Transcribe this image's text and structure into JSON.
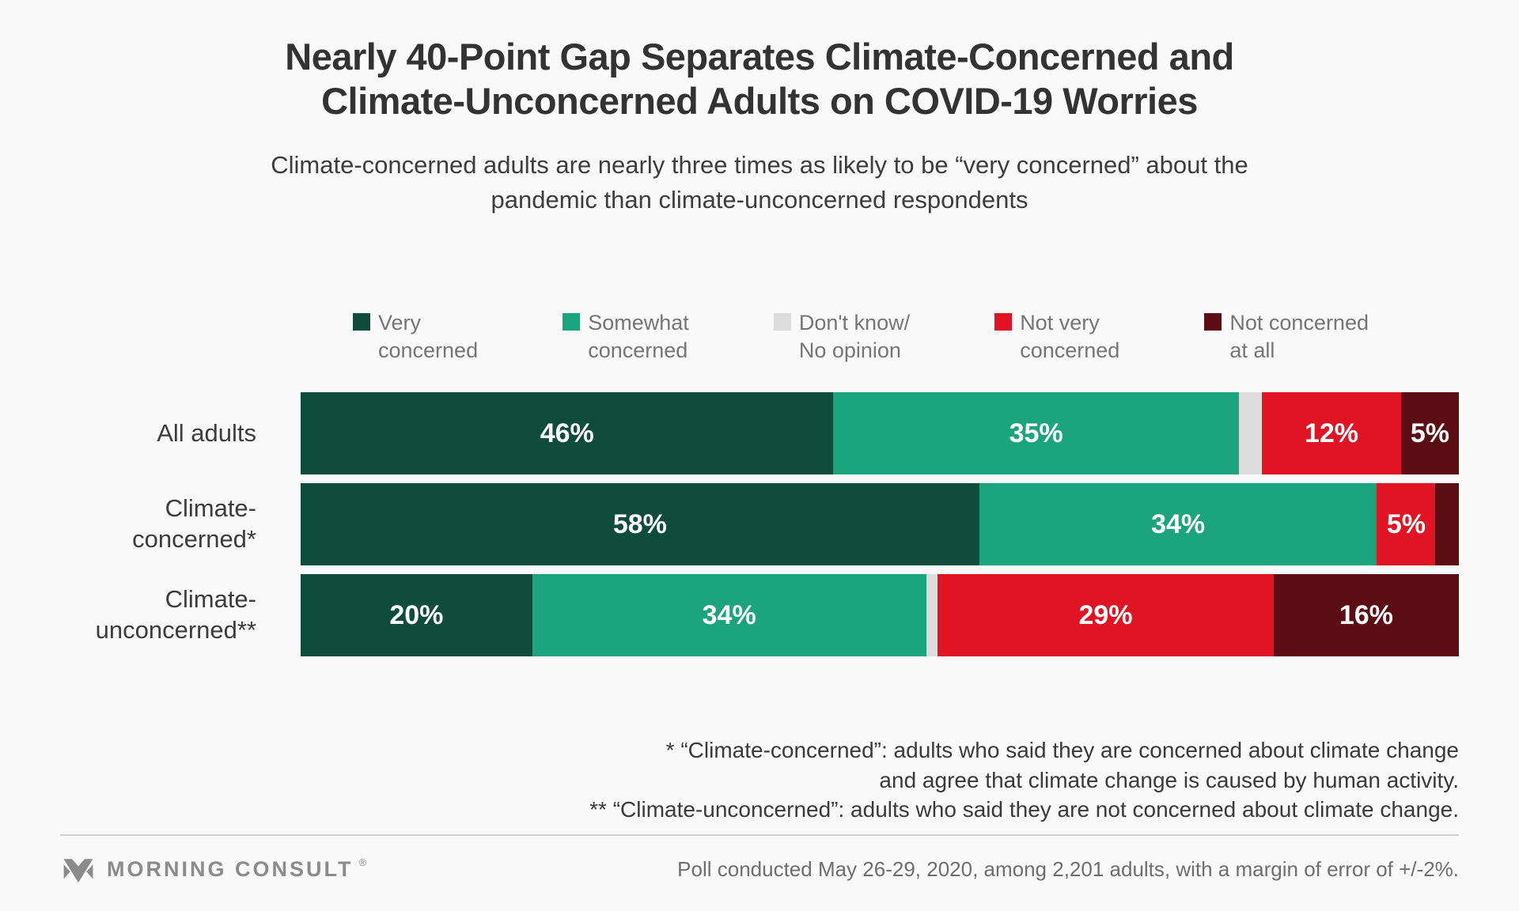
{
  "header": {
    "title": "Nearly 40-Point Gap Separates Climate-Concerned and Climate-Unconcerned Adults on COVID-19 Worries",
    "subtitle": "Climate-concerned adults are nearly three times as likely to be “very concerned” about the pandemic than climate-unconcerned respondents"
  },
  "chart_data": {
    "type": "bar",
    "stacked": true,
    "orientation": "horizontal",
    "unit": "%",
    "xlim": [
      0,
      100
    ],
    "grid": false,
    "legend_position": "top",
    "title": "Nearly 40-Point Gap Separates Climate-Concerned and Climate-Unconcerned Adults on COVID-19 Worries",
    "subtitle": "Climate-concerned adults are nearly three times as likely to be “very concerned” about the pandemic than climate-unconcerned respondents",
    "categories": [
      "All adults",
      "Climate-concerned*",
      "Climate-unconcerned**"
    ],
    "series": [
      {
        "name": "Very concerned",
        "legend_label": "Very\nconcerned",
        "color": "#0F4C3C",
        "values": [
          46,
          58,
          20
        ],
        "labels": [
          "46%",
          "58%",
          "20%"
        ]
      },
      {
        "name": "Somewhat concerned",
        "legend_label": "Somewhat\nconcerned",
        "color": "#1BA47D",
        "values": [
          35,
          34,
          34
        ],
        "labels": [
          "35%",
          "34%",
          "34%"
        ]
      },
      {
        "name": "Don't know/No opinion",
        "legend_label": "Don't know/\nNo opinion",
        "color": "#DCDCDC",
        "values": [
          2,
          0,
          1
        ],
        "labels": [
          "",
          "",
          ""
        ]
      },
      {
        "name": "Not very concerned",
        "legend_label": "Not very\nconcerned",
        "color": "#E01422",
        "values": [
          12,
          5,
          29
        ],
        "labels": [
          "12%",
          "5%",
          "29%"
        ]
      },
      {
        "name": "Not concerned at all",
        "legend_label": "Not concerned\nat all",
        "color": "#5C0E14",
        "values": [
          5,
          2,
          16
        ],
        "labels": [
          "5%",
          "",
          "16%"
        ]
      }
    ]
  },
  "footnotes": {
    "line1": "* “Climate-concerned”: adults who said they are concerned about climate change",
    "line2": "and agree that climate change is caused by human activity.",
    "line3": "** “Climate-unconcerned”: adults who said they are not concerned about climate change."
  },
  "footer": {
    "brand": "MORNING CONSULT",
    "registered": "®",
    "poll_note": "Poll conducted May 26-29, 2020, among 2,201 adults, with a margin of error of +/-2%."
  },
  "colors": {
    "background": "#F9F9F9",
    "title_text": "#333333",
    "body_text": "#3C3C3C",
    "legend_text": "#757575",
    "footer_text": "#8B8B8B",
    "divider": "#CFCFCF"
  }
}
